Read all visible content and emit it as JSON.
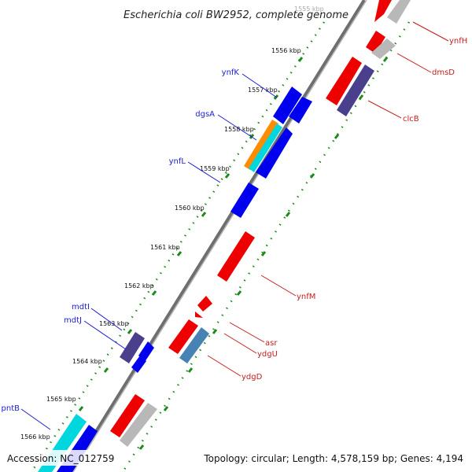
{
  "title": "Escherichia coli BW2952, complete genome",
  "accession_label": "Accession: NC_012759",
  "summary_label": "Topology: circular; Length: 4,578,159 bp; Genes: 4,194",
  "colors": {
    "forward_cds": "#0000ee",
    "reverse_cds": "#ee0000",
    "pseudo": "#b8b8b8",
    "purple": "#4a3f8c",
    "orange": "#ff8c00",
    "cyan": "#00d6de",
    "steel": "#4682b4",
    "backbone": "#777777",
    "ticks": "#1a8a1a"
  },
  "scale": {
    "unit": "kbp",
    "top_fragment": "1555 kbp",
    "ticks": [
      "1556 kbp",
      "1557 kbp",
      "1558 kbp",
      "1559 kbp",
      "1560 kbp",
      "1561 kbp",
      "1562 kbp",
      "1563 kbp",
      "1564 kbp",
      "1565 kbp",
      "1566 kbp"
    ]
  },
  "genes_left": [
    "ynfK",
    "dgsA",
    "ynfL",
    "mdtI",
    "mdtJ",
    "pntB"
  ],
  "genes_right": [
    "ynfH",
    "dmsD",
    "clcB",
    "ynfM",
    "asr",
    "ydgU",
    "ydgD"
  ]
}
